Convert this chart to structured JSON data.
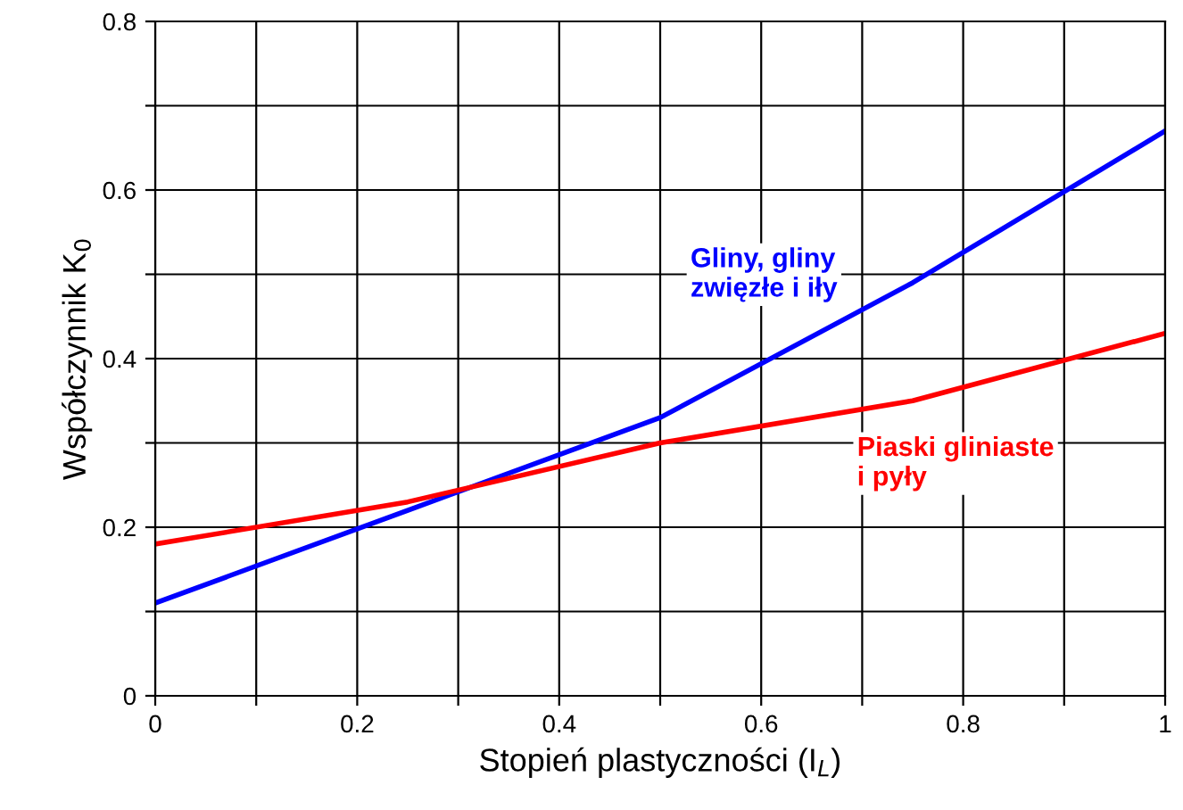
{
  "chart_data": {
    "type": "line",
    "xlabel": "Stopień plastyczności (I$_{L}$)",
    "ylabel": "Współczynnik K$_{0}$",
    "x": [
      0,
      0.25,
      0.5,
      0.75,
      1
    ],
    "series": [
      {
        "color": "#0000ff",
        "values": [
          0.11,
          0.22,
          0.33,
          0.49,
          0.67
        ]
      },
      {
        "color": "#ff0000",
        "values": [
          0.18,
          0.23,
          0.3,
          0.35,
          0.43
        ]
      }
    ],
    "annotations": [
      "Gliny, gliny\nzwięzłe i iły",
      "Piaski gliniaste\ni pyły"
    ],
    "xlim": [
      0,
      1
    ],
    "ylim": [
      0,
      0.8
    ],
    "xticks": [
      0,
      {
        "value": 0.1,
        "label": null
      },
      0.2,
      {
        "value": 0.3,
        "label": null
      },
      0.4,
      {
        "value": 0.5,
        "label": null
      },
      0.6,
      {
        "value": 0.7,
        "label": null
      },
      0.8,
      {
        "value": 0.9,
        "label": null
      },
      1
    ],
    "yticks": [
      0,
      {
        "value": 0.1,
        "label": null
      },
      0.2,
      {
        "value": 0.3,
        "label": null
      },
      0.4,
      {
        "value": 0.5,
        "label": null
      },
      0.6,
      {
        "value": 0.7,
        "label": null
      },
      0.8
    ],
    "grid": true,
    "marker": "none",
    "line_style": "solid"
  }
}
